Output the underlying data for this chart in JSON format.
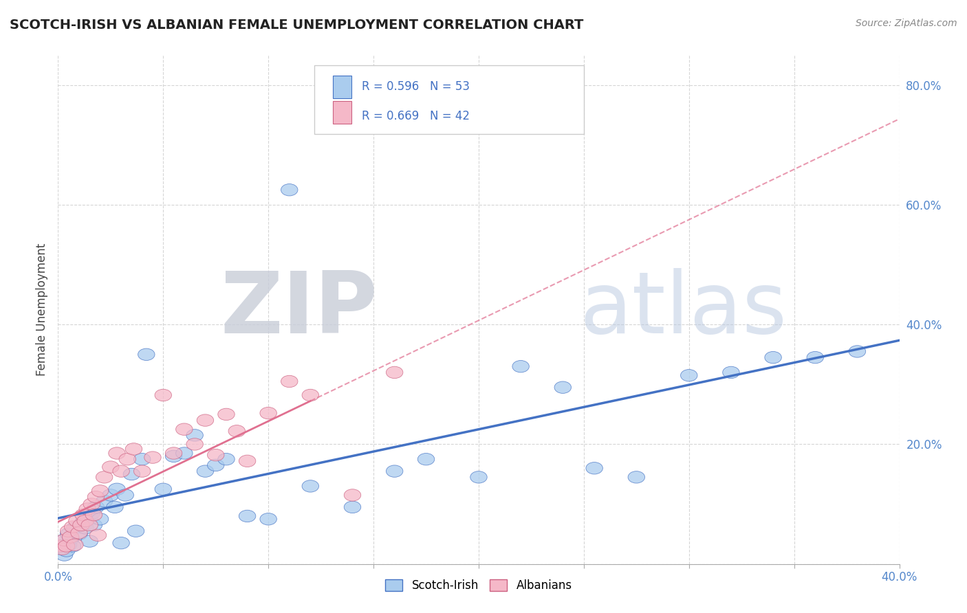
{
  "title": "SCOTCH-IRISH VS ALBANIAN FEMALE UNEMPLOYMENT CORRELATION CHART",
  "source_text": "Source: ZipAtlas.com",
  "ylabel": "Female Unemployment",
  "xlim": [
    0.0,
    0.4
  ],
  "ylim": [
    0.0,
    0.85
  ],
  "xticks": [
    0.0,
    0.05,
    0.1,
    0.15,
    0.2,
    0.25,
    0.3,
    0.35,
    0.4
  ],
  "yticks": [
    0.0,
    0.2,
    0.4,
    0.6,
    0.8
  ],
  "background_color": "#ffffff",
  "grid_color": "#cccccc",
  "watermark_zip": "ZIP",
  "watermark_atlas": "atlas",
  "scotch_irish_color": "#aaccee",
  "albanian_color": "#f5b8c8",
  "scotch_irish_line_color": "#4472c4",
  "albanian_line_color": "#e07090",
  "albanian_line_dash_color": "#e8a0b8",
  "legend_r1": "R = 0.596",
  "legend_n1": "N = 53",
  "legend_r2": "R = 0.669",
  "legend_n2": "N = 42",
  "legend_label1": "Scotch-Irish",
  "legend_label2": "Albanians",
  "scotch_irish_x": [
    0.001,
    0.002,
    0.003,
    0.003,
    0.004,
    0.005,
    0.005,
    0.006,
    0.007,
    0.008,
    0.01,
    0.012,
    0.013,
    0.015,
    0.015,
    0.016,
    0.017,
    0.018,
    0.02,
    0.022,
    0.025,
    0.027,
    0.028,
    0.03,
    0.032,
    0.035,
    0.037,
    0.04,
    0.042,
    0.05,
    0.055,
    0.06,
    0.065,
    0.07,
    0.075,
    0.08,
    0.09,
    0.1,
    0.11,
    0.12,
    0.14,
    0.16,
    0.175,
    0.2,
    0.22,
    0.24,
    0.255,
    0.275,
    0.3,
    0.32,
    0.34,
    0.36,
    0.38
  ],
  "scotch_irish_y": [
    0.025,
    0.03,
    0.015,
    0.04,
    0.022,
    0.032,
    0.05,
    0.042,
    0.03,
    0.06,
    0.05,
    0.07,
    0.06,
    0.075,
    0.038,
    0.085,
    0.065,
    0.095,
    0.075,
    0.105,
    0.115,
    0.095,
    0.125,
    0.035,
    0.115,
    0.15,
    0.055,
    0.175,
    0.35,
    0.125,
    0.18,
    0.185,
    0.215,
    0.155,
    0.165,
    0.175,
    0.08,
    0.075,
    0.625,
    0.13,
    0.095,
    0.155,
    0.175,
    0.145,
    0.33,
    0.295,
    0.16,
    0.145,
    0.315,
    0.32,
    0.345,
    0.345,
    0.355
  ],
  "albanian_x": [
    0.001,
    0.002,
    0.003,
    0.004,
    0.005,
    0.006,
    0.007,
    0.008,
    0.009,
    0.01,
    0.011,
    0.012,
    0.013,
    0.014,
    0.015,
    0.016,
    0.017,
    0.018,
    0.019,
    0.02,
    0.022,
    0.025,
    0.028,
    0.03,
    0.033,
    0.036,
    0.04,
    0.045,
    0.05,
    0.055,
    0.06,
    0.065,
    0.07,
    0.075,
    0.08,
    0.085,
    0.09,
    0.1,
    0.11,
    0.12,
    0.14,
    0.16
  ],
  "albanian_y": [
    0.03,
    0.025,
    0.04,
    0.03,
    0.055,
    0.045,
    0.062,
    0.032,
    0.072,
    0.052,
    0.065,
    0.082,
    0.072,
    0.092,
    0.065,
    0.1,
    0.082,
    0.112,
    0.048,
    0.122,
    0.145,
    0.162,
    0.185,
    0.155,
    0.175,
    0.192,
    0.155,
    0.178,
    0.282,
    0.185,
    0.225,
    0.2,
    0.24,
    0.182,
    0.25,
    0.222,
    0.172,
    0.252,
    0.305,
    0.282,
    0.115,
    0.32
  ]
}
